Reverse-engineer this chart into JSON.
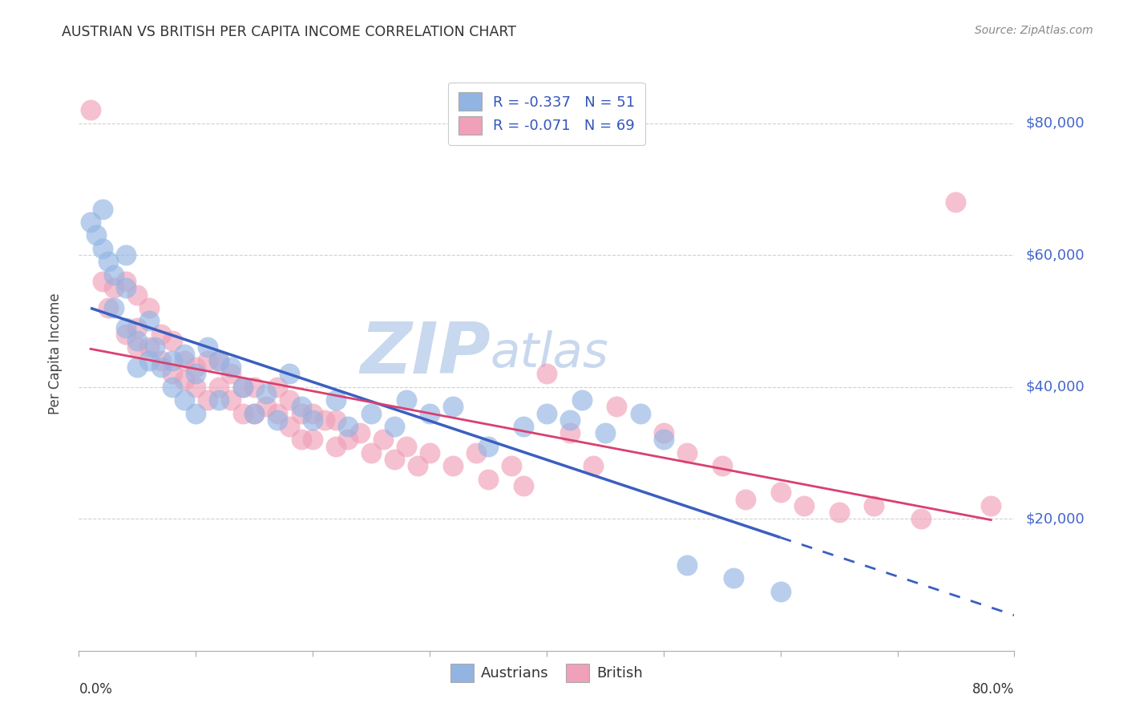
{
  "title": "AUSTRIAN VS BRITISH PER CAPITA INCOME CORRELATION CHART",
  "source": "Source: ZipAtlas.com",
  "ylabel": "Per Capita Income",
  "ytick_labels": [
    "$20,000",
    "$40,000",
    "$60,000",
    "$80,000"
  ],
  "ytick_values": [
    20000,
    40000,
    60000,
    80000
  ],
  "xlim": [
    0.0,
    0.8
  ],
  "ylim": [
    0,
    90000
  ],
  "legend_line1": "R = -0.337   N = 51",
  "legend_line2": "R = -0.071   N = 69",
  "color_austrians": "#92b4e3",
  "color_british": "#f0a0b8",
  "color_trendline_austrians": "#3b5fc0",
  "color_trendline_british": "#d94070",
  "watermark_color": "#c8d8ee",
  "background_color": "#ffffff",
  "grid_color": "#cccccc",
  "austrians_x": [
    0.01,
    0.015,
    0.02,
    0.02,
    0.025,
    0.03,
    0.03,
    0.04,
    0.04,
    0.04,
    0.05,
    0.05,
    0.06,
    0.06,
    0.065,
    0.07,
    0.08,
    0.08,
    0.09,
    0.09,
    0.1,
    0.1,
    0.11,
    0.12,
    0.12,
    0.13,
    0.14,
    0.15,
    0.16,
    0.17,
    0.18,
    0.19,
    0.2,
    0.22,
    0.23,
    0.25,
    0.27,
    0.28,
    0.3,
    0.32,
    0.35,
    0.38,
    0.4,
    0.42,
    0.43,
    0.45,
    0.48,
    0.5,
    0.52,
    0.56,
    0.6
  ],
  "austrians_y": [
    65000,
    63000,
    67000,
    61000,
    59000,
    57000,
    52000,
    60000,
    55000,
    49000,
    47000,
    43000,
    50000,
    44000,
    46000,
    43000,
    44000,
    40000,
    45000,
    38000,
    42000,
    36000,
    46000,
    44000,
    38000,
    43000,
    40000,
    36000,
    39000,
    35000,
    42000,
    37000,
    35000,
    38000,
    34000,
    36000,
    34000,
    38000,
    36000,
    37000,
    31000,
    34000,
    36000,
    35000,
    38000,
    33000,
    36000,
    32000,
    13000,
    11000,
    9000
  ],
  "british_x": [
    0.01,
    0.02,
    0.025,
    0.03,
    0.04,
    0.04,
    0.05,
    0.05,
    0.05,
    0.06,
    0.06,
    0.07,
    0.07,
    0.08,
    0.08,
    0.09,
    0.09,
    0.1,
    0.1,
    0.11,
    0.11,
    0.12,
    0.12,
    0.13,
    0.13,
    0.14,
    0.14,
    0.15,
    0.15,
    0.16,
    0.17,
    0.17,
    0.18,
    0.18,
    0.19,
    0.19,
    0.2,
    0.2,
    0.21,
    0.22,
    0.22,
    0.23,
    0.24,
    0.25,
    0.26,
    0.27,
    0.28,
    0.29,
    0.3,
    0.32,
    0.34,
    0.35,
    0.37,
    0.38,
    0.4,
    0.42,
    0.44,
    0.46,
    0.5,
    0.52,
    0.55,
    0.57,
    0.6,
    0.62,
    0.65,
    0.68,
    0.72,
    0.75,
    0.78
  ],
  "british_y": [
    82000,
    56000,
    52000,
    55000,
    56000,
    48000,
    54000,
    49000,
    46000,
    52000,
    46000,
    48000,
    44000,
    47000,
    42000,
    44000,
    41000,
    43000,
    40000,
    44000,
    38000,
    44000,
    40000,
    42000,
    38000,
    40000,
    36000,
    40000,
    36000,
    37000,
    40000,
    36000,
    38000,
    34000,
    36000,
    32000,
    36000,
    32000,
    35000,
    35000,
    31000,
    32000,
    33000,
    30000,
    32000,
    29000,
    31000,
    28000,
    30000,
    28000,
    30000,
    26000,
    28000,
    25000,
    42000,
    33000,
    28000,
    37000,
    33000,
    30000,
    28000,
    23000,
    24000,
    22000,
    21000,
    22000,
    20000,
    68000,
    22000
  ]
}
